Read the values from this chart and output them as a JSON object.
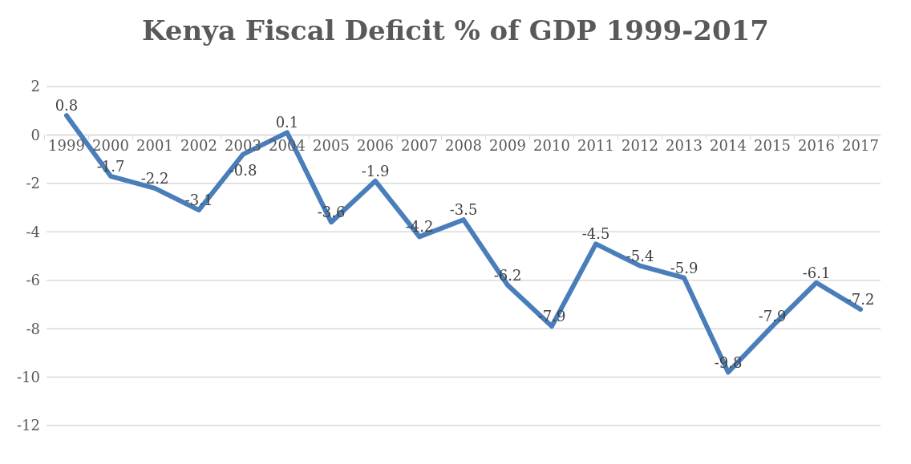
{
  "chart_data": {
    "type": "line",
    "title": "Kenya Fiscal Deficit % of GDP 1999-2017",
    "categories": [
      "1999",
      "2000",
      "2001",
      "2002",
      "2003",
      "2004",
      "2005",
      "2006",
      "2007",
      "2008",
      "2009",
      "2010",
      "2011",
      "2012",
      "2013",
      "2014",
      "2015",
      "2016",
      "2017"
    ],
    "series": [
      {
        "color": "#4a7ebb",
        "values": [
          0.8,
          -1.7,
          -2.2,
          -3.1,
          -0.8,
          0.1,
          -3.6,
          -1.9,
          -4.2,
          -3.5,
          -6.2,
          -7.9,
          -4.5,
          -5.4,
          -5.9,
          -9.8,
          -7.9,
          -6.1,
          -7.2
        ]
      }
    ],
    "ylim": [
      -12,
      2
    ],
    "yticks": [
      -12,
      -10,
      -8,
      -6,
      -4,
      -2,
      0,
      2
    ],
    "grid": "y",
    "data_labels": true,
    "marker": "none",
    "line_style": "solid"
  }
}
